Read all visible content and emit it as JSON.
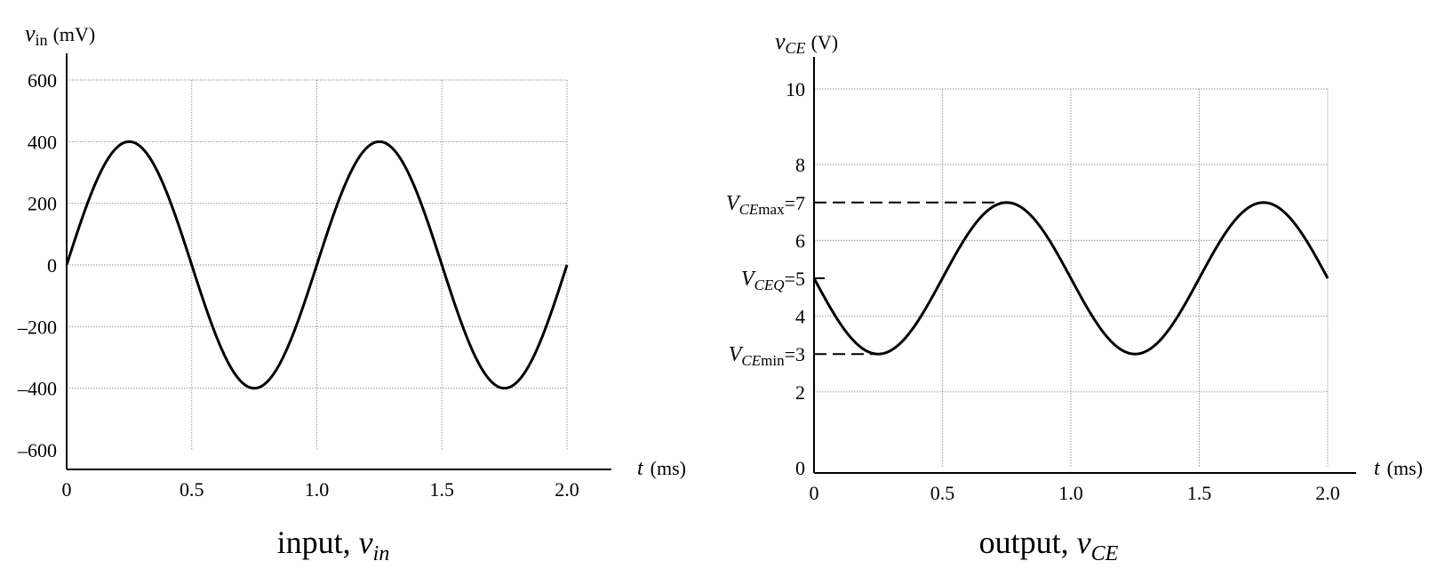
{
  "chart_data": [
    {
      "type": "line",
      "ylabel_var": "v",
      "ylabel_sub": "in",
      "ylabel_unit": "(mV)",
      "xlabel_var": "t",
      "xlabel_unit": "(ms)",
      "caption_text": "input, ",
      "caption_var": "v",
      "caption_sub": "in",
      "xlim": [
        0,
        2.0
      ],
      "ylim": [
        -600,
        600
      ],
      "x_ticks": [
        0,
        0.5,
        1.0,
        1.5,
        2.0
      ],
      "x_tick_labels": [
        "0",
        "0.5",
        "1.0",
        "1.5",
        "2.0"
      ],
      "y_ticks": [
        -600,
        -400,
        -200,
        0,
        200,
        400,
        600
      ],
      "y_tick_labels": [
        "–600",
        "–400",
        "–200",
        "0",
        "200",
        "400",
        "600"
      ],
      "grid": true,
      "series": [
        {
          "function": "sine",
          "offset": 0,
          "amplitude": 400,
          "period": 1.0,
          "phase": 0
        }
      ]
    },
    {
      "type": "line",
      "ylabel_var": "v",
      "ylabel_sub": "CE",
      "ylabel_unit": "(V)",
      "xlabel_var": "t",
      "xlabel_unit": "(ms)",
      "caption_text": "output, ",
      "caption_var": "v",
      "caption_sub": "CE",
      "xlim": [
        0,
        2.0
      ],
      "ylim": [
        0,
        10
      ],
      "x_ticks": [
        0,
        0.5,
        1.0,
        1.5,
        2.0
      ],
      "x_tick_labels": [
        "0",
        "0.5",
        "1.0",
        "1.5",
        "2.0"
      ],
      "y_ticks": [
        0,
        2,
        4,
        6,
        8,
        10
      ],
      "y_tick_labels": [
        "0",
        "2",
        "4",
        "6",
        "8",
        "10"
      ],
      "grid": true,
      "series": [
        {
          "function": "sine",
          "offset": 5,
          "amplitude": -2,
          "period": 1.0,
          "phase": 0
        }
      ],
      "annotations": [
        {
          "var": "V",
          "sub": "CE",
          "sub2": "max",
          "text": "=7",
          "y": 7,
          "x_end": 0.75
        },
        {
          "var": "V",
          "sub": "CEQ",
          "sub2": "",
          "text": "=5",
          "y": 5,
          "x_end": 0.0
        },
        {
          "var": "V",
          "sub": "CE",
          "sub2": "min",
          "text": "=3",
          "y": 3,
          "x_end": 0.25
        }
      ]
    }
  ]
}
